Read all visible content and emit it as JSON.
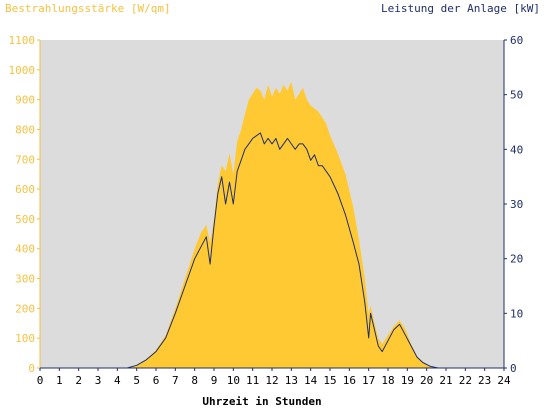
{
  "chart_data": {
    "type": "area",
    "left_axis_title": "Bestrahlungsstärke [W/qm]",
    "right_axis_title": "Leistung der Anlage [kW]",
    "xlabel": "Uhrzeit in Stunden",
    "xlim": [
      0,
      24
    ],
    "ylim_left": [
      0,
      1100
    ],
    "ylim_right": [
      0,
      60
    ],
    "x_ticks": [
      0,
      1,
      2,
      3,
      4,
      5,
      6,
      7,
      8,
      9,
      10,
      11,
      12,
      13,
      14,
      15,
      16,
      17,
      18,
      19,
      20,
      21,
      22,
      23,
      24
    ],
    "y_ticks_left": [
      0,
      100,
      200,
      300,
      400,
      500,
      600,
      700,
      800,
      900,
      1000,
      1100
    ],
    "y_ticks_right": [
      0,
      10,
      20,
      30,
      40,
      50,
      60
    ],
    "grid": false,
    "colors": {
      "plot_background": "#dcdcdc",
      "irradiance_fill": "#ffc933",
      "power_line": "#1f2f6b",
      "left_axis": "#f5c242",
      "right_axis": "#1f2f6b"
    },
    "series": [
      {
        "name": "Bestrahlungsstärke",
        "axis": "left",
        "style": "area",
        "x": [
          0,
          4.5,
          5,
          5.5,
          6,
          6.5,
          7,
          7.5,
          8,
          8.3,
          8.6,
          8.8,
          9,
          9.2,
          9.4,
          9.6,
          9.8,
          10,
          10.2,
          10.4,
          10.6,
          10.8,
          11,
          11.2,
          11.4,
          11.6,
          11.8,
          12,
          12.2,
          12.4,
          12.6,
          12.8,
          13,
          13.2,
          13.4,
          13.6,
          13.8,
          14,
          14.2,
          14.4,
          14.6,
          14.8,
          15,
          15.4,
          15.8,
          16.2,
          16.5,
          16.8,
          17,
          17.1,
          17.3,
          17.5,
          17.7,
          18,
          18.3,
          18.6,
          18.9,
          19.2,
          19.5,
          19.8,
          20.2,
          20.6,
          21,
          24
        ],
        "y": [
          0,
          0,
          10,
          30,
          60,
          110,
          200,
          300,
          400,
          450,
          480,
          420,
          500,
          620,
          680,
          660,
          720,
          650,
          760,
          800,
          850,
          900,
          920,
          940,
          930,
          900,
          950,
          910,
          940,
          920,
          950,
          930,
          960,
          900,
          920,
          940,
          900,
          880,
          870,
          860,
          840,
          820,
          780,
          720,
          650,
          540,
          430,
          300,
          180,
          210,
          150,
          100,
          80,
          110,
          140,
          160,
          130,
          80,
          40,
          20,
          5,
          0,
          0,
          0
        ]
      },
      {
        "name": "Leistung der Anlage",
        "axis": "right",
        "style": "line",
        "x": [
          0,
          4.5,
          5,
          5.5,
          6,
          6.5,
          7,
          7.5,
          8,
          8.3,
          8.6,
          8.8,
          9,
          9.2,
          9.4,
          9.6,
          9.8,
          10,
          10.2,
          10.4,
          10.6,
          10.8,
          11,
          11.2,
          11.4,
          11.6,
          11.8,
          12,
          12.2,
          12.4,
          12.6,
          12.8,
          13,
          13.2,
          13.4,
          13.6,
          13.8,
          14,
          14.2,
          14.4,
          14.6,
          14.8,
          15,
          15.4,
          15.8,
          16.2,
          16.5,
          16.8,
          17,
          17.1,
          17.3,
          17.5,
          17.7,
          18,
          18.3,
          18.6,
          18.9,
          19.2,
          19.5,
          19.8,
          20.2,
          20.6,
          21,
          24
        ],
        "y": [
          0,
          0,
          0.5,
          1.5,
          3,
          5.5,
          10,
          15,
          20,
          22,
          24,
          19,
          26,
          32,
          35,
          30,
          34,
          30,
          36,
          38,
          40,
          41,
          42,
          42.5,
          43,
          41,
          42,
          41,
          42,
          40,
          41,
          42,
          41,
          40,
          41,
          41,
          40,
          38,
          39,
          37,
          37,
          36,
          35,
          32,
          28,
          23,
          19,
          12,
          5.5,
          10,
          7,
          4,
          3,
          5,
          7,
          8,
          6,
          4,
          2,
          1,
          0.3,
          0,
          0,
          0
        ]
      }
    ]
  }
}
